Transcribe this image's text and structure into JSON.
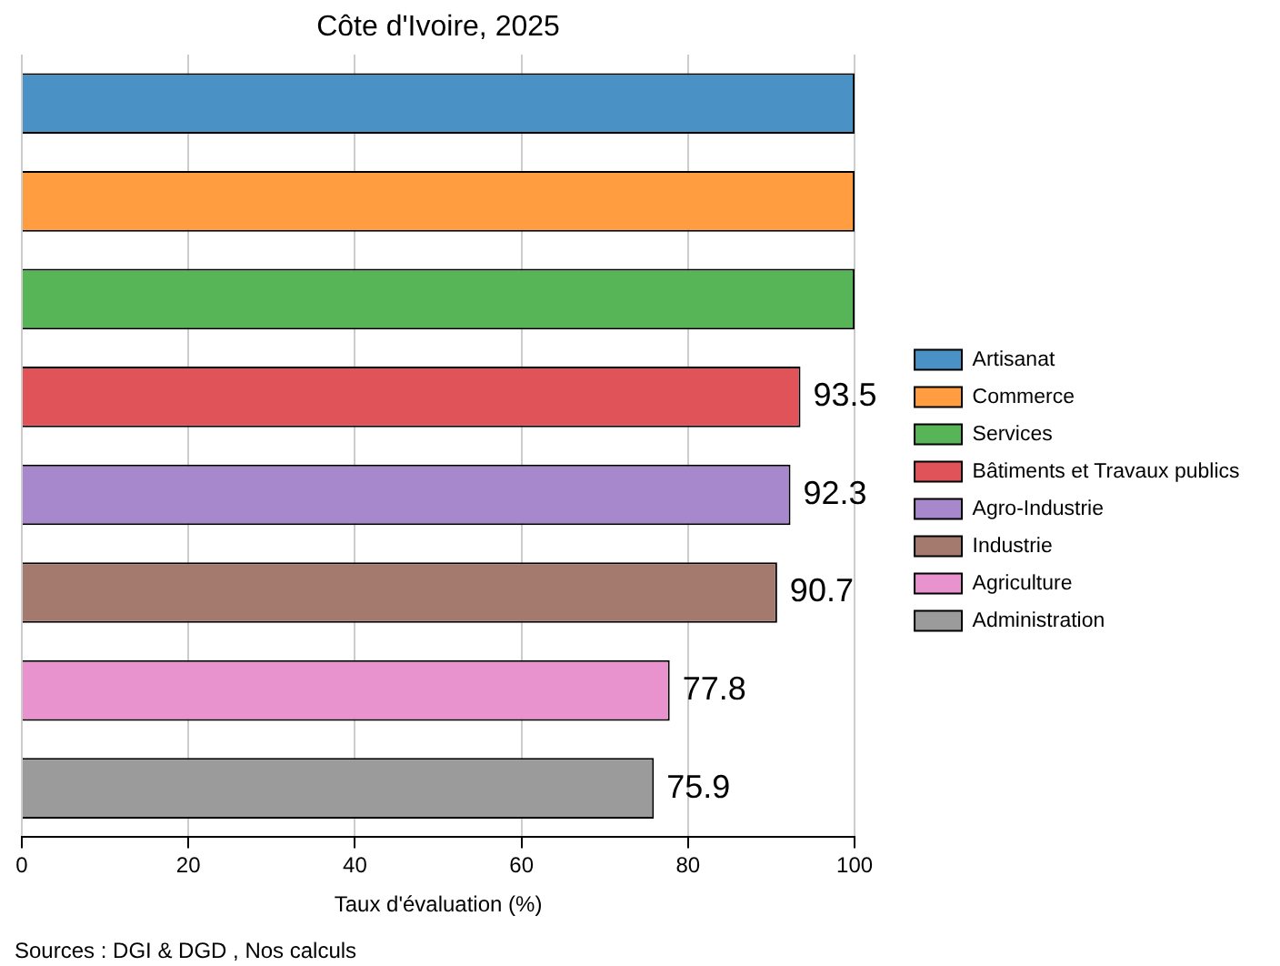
{
  "chart_data": {
    "type": "bar",
    "orientation": "horizontal",
    "title": "Côte d'Ivoire, 2025",
    "xlabel": "Taux d'évaluation (%)",
    "categories": [
      null,
      null,
      null,
      null,
      null,
      null,
      null,
      null
    ],
    "series": [
      {
        "name": "Artisanat",
        "color": "#4a92c6",
        "values": [
          100,
          null,
          null,
          null,
          null,
          null,
          null,
          null
        ]
      },
      {
        "name": "Commerce",
        "color": "#ff9d40",
        "values": [
          null,
          100,
          null,
          null,
          null,
          null,
          null,
          null
        ]
      },
      {
        "name": "Services",
        "color": "#58b557",
        "values": [
          null,
          null,
          100,
          null,
          null,
          null,
          null,
          null
        ]
      },
      {
        "name": "Bâtiments et Travaux publics",
        "color": "#e05459",
        "values": [
          null,
          null,
          null,
          93.5,
          null,
          null,
          null,
          null
        ],
        "value_labels": [
          null,
          null,
          null,
          "93.5",
          null,
          null,
          null,
          null
        ]
      },
      {
        "name": "Agro-Industrie",
        "color": "#a888cc",
        "values": [
          null,
          null,
          null,
          null,
          92.3,
          null,
          null,
          null
        ],
        "value_labels": [
          null,
          null,
          null,
          null,
          "92.3",
          null,
          null,
          null
        ]
      },
      {
        "name": "Industrie",
        "color": "#a57a6e",
        "values": [
          null,
          null,
          null,
          null,
          null,
          90.7,
          null,
          null
        ],
        "value_labels": [
          null,
          null,
          null,
          null,
          null,
          "90.7",
          null,
          null
        ]
      },
      {
        "name": "Agriculture",
        "color": "#e993ce",
        "values": [
          null,
          null,
          null,
          null,
          null,
          null,
          77.8,
          null
        ],
        "value_labels": [
          null,
          null,
          null,
          null,
          null,
          null,
          "77.8",
          null
        ]
      },
      {
        "name": "Administration",
        "color": "#9b9b9b",
        "values": [
          null,
          null,
          null,
          null,
          null,
          null,
          null,
          75.9
        ],
        "value_labels": [
          null,
          null,
          null,
          null,
          null,
          null,
          null,
          "75.9"
        ]
      }
    ],
    "xlim": [
      0,
      100
    ],
    "xticks": [
      0,
      20,
      40,
      60,
      80,
      100
    ],
    "grid": "x",
    "legend": "right",
    "tick_labels": "x",
    "annotations": [
      "Sources : DGI & DGD , Nos calculs"
    ]
  }
}
